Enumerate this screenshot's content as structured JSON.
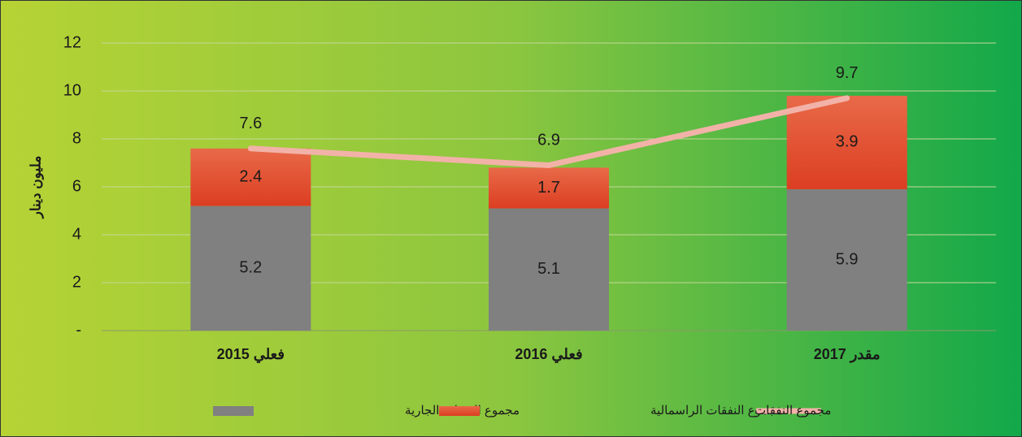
{
  "chart_data": {
    "type": "bar",
    "stacked": true,
    "y_label": "مليون دينار",
    "categories": [
      "فعلي 2015",
      "فعلي 2016",
      "مقدر 2017"
    ],
    "series": [
      {
        "name": "مجموع النفقات الجارية",
        "type": "bar",
        "color": "#808080",
        "values": [
          5.2,
          5.1,
          5.9
        ]
      },
      {
        "name": "مجموع النفقات الراسمالية",
        "type": "bar",
        "color": "#e0442a",
        "values": [
          2.4,
          1.7,
          3.9
        ]
      },
      {
        "name": "مجموع النفقات",
        "type": "line",
        "color": "#f2b2a8",
        "values": [
          7.6,
          6.9,
          9.7
        ]
      }
    ],
    "ylim": [
      0,
      12
    ],
    "yticks": [
      {
        "value": 0,
        "label": "-"
      },
      2,
      4,
      6,
      8,
      10,
      12
    ],
    "grid": true,
    "legend": "bottom"
  }
}
